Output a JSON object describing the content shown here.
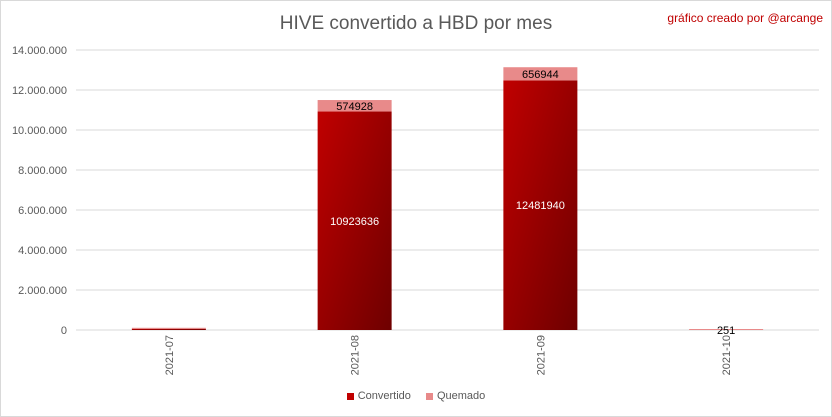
{
  "header": {
    "title": "HIVE convertido a HBD por mes",
    "credit": "gráfico creado por @arcange"
  },
  "colors": {
    "convertido_dark": "#6e0000",
    "convertido_light": "#c00000",
    "quemado": "#e88a8a",
    "grid": "#d9d9d9",
    "text": "#595959"
  },
  "chart_data": {
    "type": "bar",
    "stacked": true,
    "title": "HIVE convertido a HBD por mes",
    "categories": [
      "2021-07",
      "2021-08",
      "2021-09",
      "2021-10"
    ],
    "series": [
      {
        "name": "Convertido",
        "values": [
          60000,
          10923636,
          12481940,
          0
        ],
        "labels": [
          "",
          "10923636",
          "12481940",
          ""
        ]
      },
      {
        "name": "Quemado",
        "values": [
          3000,
          574928,
          656944,
          251
        ],
        "labels": [
          "",
          "574928",
          "656944",
          "251"
        ]
      }
    ],
    "ylim": [
      0,
      14000000
    ],
    "yticks": [
      "0",
      "2.000.000",
      "4.000.000",
      "6.000.000",
      "8.000.000",
      "10.000.000",
      "12.000.000",
      "14.000.000"
    ],
    "ytick_values": [
      0,
      2000000,
      4000000,
      6000000,
      8000000,
      10000000,
      12000000,
      14000000
    ],
    "grid": true,
    "legend_position": "bottom"
  }
}
